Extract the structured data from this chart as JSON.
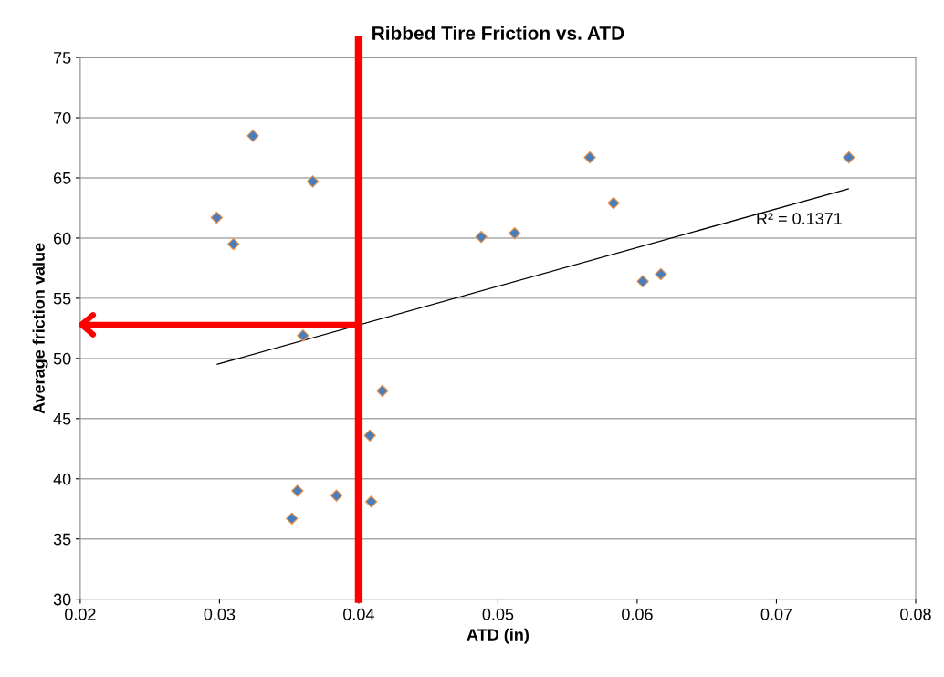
{
  "chart_data": {
    "type": "scatter",
    "title": "Ribbed Tire Friction vs. ATD",
    "xlabel": "ATD (in)",
    "ylabel": "Average friction value",
    "xlim": [
      0.02,
      0.08
    ],
    "xticks": [
      {
        "value": 0.02,
        "label": "0.02"
      },
      {
        "value": 0.03,
        "label": "0.03"
      },
      {
        "value": 0.04,
        "label": "0.04"
      },
      {
        "value": 0.05,
        "label": "0.05"
      },
      {
        "value": 0.06,
        "label": "0.06"
      },
      {
        "value": 0.07,
        "label": "0.07"
      },
      {
        "value": 0.08,
        "label": "0.08"
      }
    ],
    "ylim": [
      30,
      75
    ],
    "yticks": [
      30,
      35,
      40,
      45,
      50,
      55,
      60,
      65,
      70,
      75
    ],
    "grid": "y",
    "series": [
      {
        "marker": "diamond",
        "color": "#4a7ebb",
        "x": [
          0.0298,
          0.031,
          0.0324,
          0.0367,
          0.036,
          0.0417,
          0.0408,
          0.0356,
          0.0384,
          0.0409,
          0.0352,
          0.0566,
          0.0752,
          0.0583,
          0.0488,
          0.0512,
          0.0604,
          0.0617
        ],
        "values": [
          61.7,
          59.5,
          68.5,
          64.7,
          51.9,
          47.3,
          43.6,
          39.0,
          38.6,
          38.1,
          36.7,
          66.7,
          66.7,
          62.9,
          60.1,
          60.4,
          56.4,
          57.0
        ]
      },
      {
        "type": "line",
        "color": "#000000",
        "x": [
          0.0298,
          0.0752
        ],
        "values": [
          49.5,
          64.1
        ]
      },
      {
        "type": "line",
        "color": "#ff0000",
        "x": [
          0.04,
          0.0202
        ],
        "values": [
          52.8,
          52.8
        ]
      }
    ],
    "ref_lines": [
      {
        "axis": "x",
        "value": 0.04,
        "color": "#ff0000"
      }
    ],
    "annotations": [
      {
        "text": "R² = 0.1371",
        "x": 0.0752,
        "y": 64.1
      }
    ]
  }
}
